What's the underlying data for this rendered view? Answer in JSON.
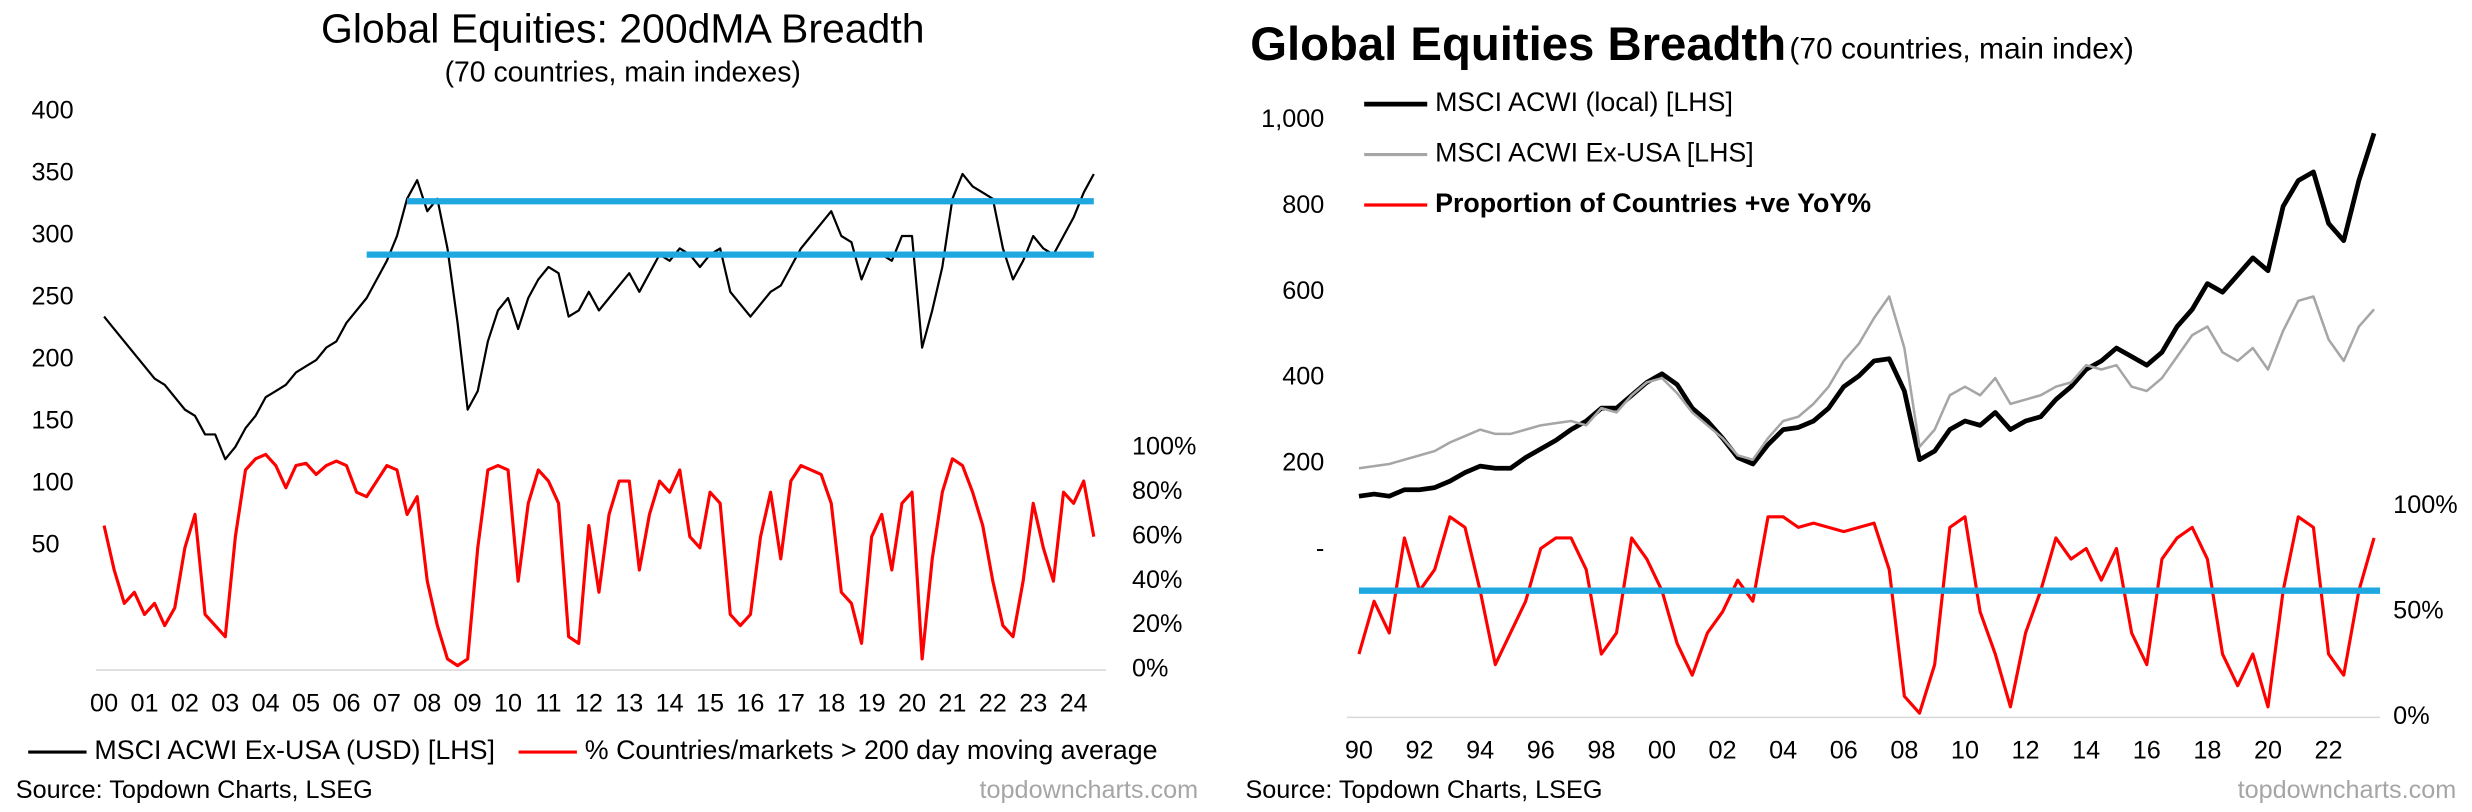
{
  "chart_data": [
    {
      "type": "line",
      "title": "Global Equities: 200dMA Breadth",
      "subtitle": "(70 countries, main indexes)",
      "source": "Source: Topdown Charts, LSEG",
      "credit": "topdowncharts.com",
      "legend": "bottom",
      "x": [
        2000,
        2000.25,
        2000.5,
        2000.75,
        2001,
        2001.25,
        2001.5,
        2001.75,
        2002,
        2002.25,
        2002.5,
        2002.75,
        2003,
        2003.25,
        2003.5,
        2003.75,
        2004,
        2004.25,
        2004.5,
        2004.75,
        2005,
        2005.25,
        2005.5,
        2005.75,
        2006,
        2006.25,
        2006.5,
        2006.75,
        2007,
        2007.25,
        2007.5,
        2007.75,
        2008,
        2008.25,
        2008.5,
        2008.75,
        2009,
        2009.25,
        2009.5,
        2009.75,
        2010,
        2010.25,
        2010.5,
        2010.75,
        2011,
        2011.25,
        2011.5,
        2011.75,
        2012,
        2012.25,
        2012.5,
        2012.75,
        2013,
        2013.25,
        2013.5,
        2013.75,
        2014,
        2014.25,
        2014.5,
        2014.75,
        2015,
        2015.25,
        2015.5,
        2015.75,
        2016,
        2016.25,
        2016.5,
        2016.75,
        2017,
        2017.25,
        2017.5,
        2017.75,
        2018,
        2018.25,
        2018.5,
        2018.75,
        2019,
        2019.25,
        2019.5,
        2019.75,
        2020,
        2020.25,
        2020.5,
        2020.75,
        2021,
        2021.25,
        2021.5,
        2021.75,
        2022,
        2022.25,
        2022.5,
        2022.75,
        2023,
        2023.25,
        2023.5,
        2023.75,
        2024,
        2024.25,
        2024.5
      ],
      "xlim": [
        1999.8,
        2024.8
      ],
      "xticks": [
        {
          "value": 2000,
          "label": "00"
        },
        {
          "value": 2001,
          "label": "01"
        },
        {
          "value": 2002,
          "label": "02"
        },
        {
          "value": 2003,
          "label": "03"
        },
        {
          "value": 2004,
          "label": "04"
        },
        {
          "value": 2005,
          "label": "05"
        },
        {
          "value": 2006,
          "label": "06"
        },
        {
          "value": 2007,
          "label": "07"
        },
        {
          "value": 2008,
          "label": "08"
        },
        {
          "value": 2009,
          "label": "09"
        },
        {
          "value": 2010,
          "label": "10"
        },
        {
          "value": 2011,
          "label": "11"
        },
        {
          "value": 2012,
          "label": "12"
        },
        {
          "value": 2013,
          "label": "13"
        },
        {
          "value": 2014,
          "label": "14"
        },
        {
          "value": 2015,
          "label": "15"
        },
        {
          "value": 2016,
          "label": "16"
        },
        {
          "value": 2017,
          "label": "17"
        },
        {
          "value": 2018,
          "label": "18"
        },
        {
          "value": 2019,
          "label": "19"
        },
        {
          "value": 2020,
          "label": "20"
        },
        {
          "value": 2021,
          "label": "21"
        },
        {
          "value": 2022,
          "label": "22"
        },
        {
          "value": 2023,
          "label": "23"
        },
        {
          "value": 2024,
          "label": "24"
        }
      ],
      "ylim": [
        -50,
        400
      ],
      "yticks": [
        50,
        100,
        150,
        200,
        250,
        300,
        350,
        400
      ],
      "y2lim": [
        0,
        251
      ],
      "y2ticks": [
        {
          "value": 0,
          "label": "0%"
        },
        {
          "value": 20,
          "label": "20%"
        },
        {
          "value": 40,
          "label": "40%"
        },
        {
          "value": 60,
          "label": "60%"
        },
        {
          "value": 80,
          "label": "80%"
        },
        {
          "value": 100,
          "label": "100%"
        }
      ],
      "series": [
        {
          "name": "MSCI ACWI Ex-USA (USD) [LHS]",
          "color": "#000000",
          "values": [
            235,
            225,
            215,
            205,
            195,
            185,
            180,
            170,
            160,
            155,
            140,
            140,
            120,
            130,
            145,
            155,
            170,
            175,
            180,
            190,
            195,
            200,
            210,
            215,
            230,
            240,
            250,
            265,
            280,
            300,
            330,
            345,
            320,
            330,
            290,
            230,
            160,
            175,
            215,
            240,
            250,
            225,
            250,
            265,
            275,
            270,
            235,
            240,
            255,
            240,
            250,
            260,
            270,
            255,
            270,
            285,
            280,
            290,
            285,
            275,
            285,
            290,
            255,
            245,
            235,
            245,
            255,
            260,
            275,
            290,
            300,
            310,
            320,
            300,
            295,
            265,
            285,
            285,
            280,
            300,
            300,
            210,
            240,
            275,
            330,
            350,
            340,
            335,
            330,
            290,
            265,
            280,
            300,
            290,
            285,
            300,
            315,
            335,
            350
          ]
        },
        {
          "name": "% Countries/markets > 200 day moving average",
          "color": "#ff0000",
          "axis": "y2",
          "values": [
            65,
            45,
            30,
            35,
            25,
            30,
            20,
            28,
            55,
            70,
            25,
            20,
            15,
            60,
            90,
            95,
            97,
            92,
            82,
            92,
            93,
            88,
            92,
            94,
            92,
            80,
            78,
            85,
            92,
            90,
            70,
            78,
            40,
            20,
            5,
            2,
            5,
            55,
            90,
            92,
            90,
            40,
            75,
            90,
            85,
            75,
            15,
            12,
            65,
            35,
            70,
            85,
            85,
            45,
            70,
            85,
            80,
            90,
            60,
            55,
            80,
            75,
            25,
            20,
            25,
            60,
            80,
            50,
            85,
            92,
            90,
            88,
            75,
            35,
            30,
            12,
            60,
            70,
            45,
            75,
            80,
            5,
            50,
            80,
            95,
            92,
            80,
            65,
            40,
            20,
            15,
            40,
            75,
            55,
            40,
            80,
            75,
            85,
            60
          ]
        }
      ],
      "hlines": [
        {
          "value": 328,
          "x": [
            2007.5,
            2024.5
          ],
          "color": "#1fa8e0"
        },
        {
          "value": 285,
          "x": [
            2006.5,
            2024.5
          ],
          "color": "#1fa8e0"
        }
      ]
    },
    {
      "type": "line",
      "title": "Global Equities Breadth",
      "subtitle": "(70 countries, main index)",
      "source": "Source: Topdown Charts, LSEG",
      "credit": "topdowncharts.com",
      "legend": "upper left",
      "x": [
        1990,
        1990.5,
        1991,
        1991.5,
        1992,
        1992.5,
        1993,
        1993.5,
        1994,
        1994.5,
        1995,
        1995.5,
        1996,
        1996.5,
        1997,
        1997.5,
        1998,
        1998.5,
        1999,
        1999.5,
        2000,
        2000.5,
        2001,
        2001.5,
        2002,
        2002.5,
        2003,
        2003.5,
        2004,
        2004.5,
        2005,
        2005.5,
        2006,
        2006.5,
        2007,
        2007.5,
        2008,
        2008.5,
        2009,
        2009.5,
        2010,
        2010.5,
        2011,
        2011.5,
        2012,
        2012.5,
        2013,
        2013.5,
        2014,
        2014.5,
        2015,
        2015.5,
        2016,
        2016.5,
        2017,
        2017.5,
        2018,
        2018.5,
        2019,
        2019.5,
        2020,
        2020.5,
        2021,
        2021.5,
        2022,
        2022.5,
        2023,
        2023.5
      ],
      "xlim": [
        1989.6,
        2023.7
      ],
      "xticks": [
        {
          "value": 1990,
          "label": "90"
        },
        {
          "value": 1992,
          "label": "92"
        },
        {
          "value": 1994,
          "label": "94"
        },
        {
          "value": 1996,
          "label": "96"
        },
        {
          "value": 1998,
          "label": "98"
        },
        {
          "value": 2000,
          "label": "00"
        },
        {
          "value": 2002,
          "label": "02"
        },
        {
          "value": 2004,
          "label": "04"
        },
        {
          "value": 2006,
          "label": "06"
        },
        {
          "value": 2008,
          "label": "08"
        },
        {
          "value": 2010,
          "label": "10"
        },
        {
          "value": 2012,
          "label": "12"
        },
        {
          "value": 2014,
          "label": "14"
        },
        {
          "value": 2016,
          "label": "16"
        },
        {
          "value": 2018,
          "label": "18"
        },
        {
          "value": 2020,
          "label": "20"
        },
        {
          "value": 2022,
          "label": "22"
        }
      ],
      "ylim": [
        -390,
        1060
      ],
      "yticks": [
        {
          "value": 0,
          "label": "-"
        },
        200,
        400,
        600,
        800,
        {
          "value": 1000,
          "label": "1,000"
        }
      ],
      "y2lim": [
        0,
        295
      ],
      "y2ticks": [
        {
          "value": 0,
          "label": "0%"
        },
        {
          "value": 50,
          "label": "50%"
        },
        {
          "value": 100,
          "label": "100%"
        }
      ],
      "series": [
        {
          "name": "MSCI ACWI (local) [LHS]",
          "color": "#000000",
          "values": [
            125,
            130,
            125,
            140,
            140,
            145,
            160,
            180,
            195,
            190,
            190,
            215,
            235,
            255,
            280,
            300,
            330,
            330,
            360,
            390,
            410,
            385,
            330,
            300,
            260,
            215,
            200,
            245,
            280,
            285,
            300,
            330,
            380,
            405,
            440,
            445,
            370,
            210,
            230,
            280,
            300,
            290,
            320,
            280,
            300,
            310,
            350,
            380,
            420,
            440,
            470,
            450,
            430,
            460,
            520,
            560,
            620,
            600,
            640,
            680,
            650,
            800,
            860,
            880,
            760,
            720,
            860,
            970
          ]
        },
        {
          "name": "MSCI ACWI Ex-USA [LHS]",
          "color": "#a6a6a6",
          "values": [
            190,
            195,
            200,
            210,
            220,
            230,
            250,
            265,
            280,
            270,
            270,
            280,
            290,
            295,
            300,
            290,
            330,
            320,
            360,
            390,
            400,
            365,
            320,
            290,
            260,
            220,
            210,
            260,
            300,
            310,
            340,
            380,
            440,
            480,
            540,
            590,
            470,
            240,
            280,
            360,
            380,
            360,
            400,
            340,
            350,
            360,
            380,
            390,
            430,
            420,
            430,
            380,
            370,
            400,
            450,
            500,
            520,
            460,
            440,
            470,
            420,
            510,
            580,
            590,
            490,
            440,
            520,
            560
          ]
        },
        {
          "name": "Proportion of Countries +ve YoY%",
          "color": "#ff0000",
          "axis": "y2",
          "values": [
            30,
            55,
            40,
            85,
            60,
            70,
            95,
            90,
            60,
            25,
            40,
            55,
            80,
            85,
            85,
            70,
            30,
            40,
            85,
            75,
            60,
            35,
            20,
            40,
            50,
            65,
            55,
            95,
            95,
            90,
            92,
            90,
            88,
            90,
            92,
            70,
            10,
            2,
            25,
            90,
            95,
            50,
            30,
            5,
            40,
            60,
            85,
            75,
            80,
            65,
            80,
            40,
            25,
            75,
            85,
            90,
            75,
            30,
            15,
            30,
            5,
            60,
            95,
            90,
            30,
            20,
            60,
            85
          ]
        }
      ],
      "hlines": [
        {
          "value": 60,
          "axis": "y2",
          "x": [
            1990,
            2023.7
          ],
          "color": "#1fa8e0"
        }
      ]
    }
  ]
}
